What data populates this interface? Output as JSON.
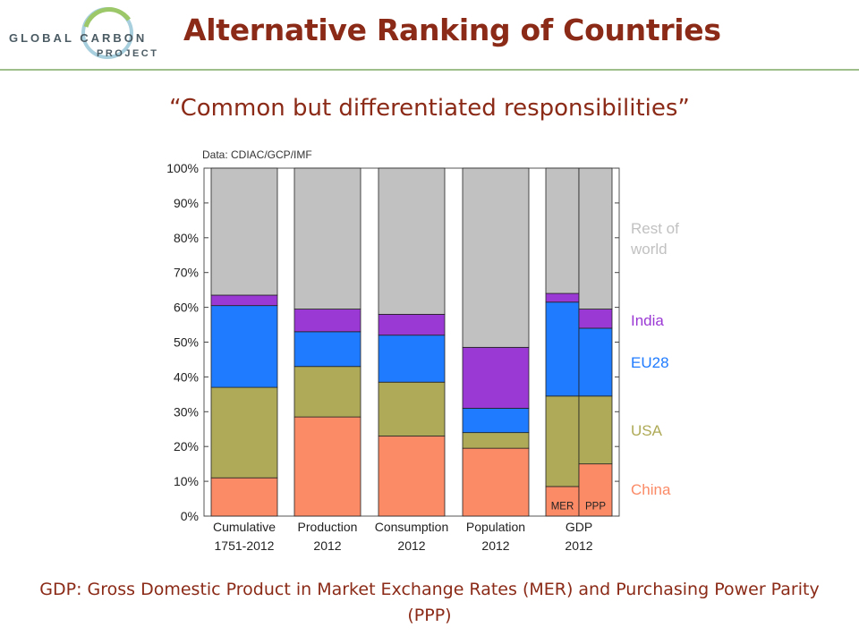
{
  "header": {
    "logo_line1": "GLOBAL CARBON",
    "logo_line2": "PROJECT",
    "title": "Alternative Ranking of Countries"
  },
  "subtitle": "“Common but differentiated responsibilities”",
  "footnote": "GDP: Gross Domestic Product in Market Exchange Rates (MER) and Purchasing Power Parity (PPP)",
  "chart_data": {
    "type": "bar",
    "stacked": true,
    "annotation": "Data: CDIAC/GCP/IMF",
    "ylim": [
      0,
      100
    ],
    "yticks": [
      "0%",
      "10%",
      "20%",
      "30%",
      "40%",
      "50%",
      "60%",
      "70%",
      "80%",
      "90%",
      "100%"
    ],
    "categories": [
      {
        "line1": "Cumulative",
        "line2": "1751-2012"
      },
      {
        "line1": "Production",
        "line2": "2012"
      },
      {
        "line1": "Consumption",
        "line2": "2012"
      },
      {
        "line1": "Population",
        "line2": "2012"
      },
      {
        "sublabel": "MER"
      },
      {
        "sublabel": "PPP"
      }
    ],
    "group_label": {
      "line1": "GDP",
      "line2": "2012"
    },
    "series": [
      {
        "name": "China",
        "color": "#fb8a66",
        "values": [
          11,
          28.5,
          23,
          19.5,
          8.5,
          15
        ]
      },
      {
        "name": "USA",
        "color": "#aeaa57",
        "values": [
          26,
          14.5,
          15.5,
          4.5,
          26,
          19.5
        ]
      },
      {
        "name": "EU28",
        "color": "#1f7bff",
        "values": [
          23.5,
          10,
          13.5,
          7,
          27,
          19.5
        ]
      },
      {
        "name": "India",
        "color": "#9b39d4",
        "values": [
          3,
          6.5,
          6,
          17.5,
          2.5,
          5.5
        ]
      },
      {
        "name": "Rest of world",
        "label_line1": "Rest of",
        "label_line2": "world",
        "color": "#c1c1c1",
        "values": [
          36.5,
          40.5,
          42,
          51.5,
          36,
          40.5
        ]
      }
    ]
  }
}
